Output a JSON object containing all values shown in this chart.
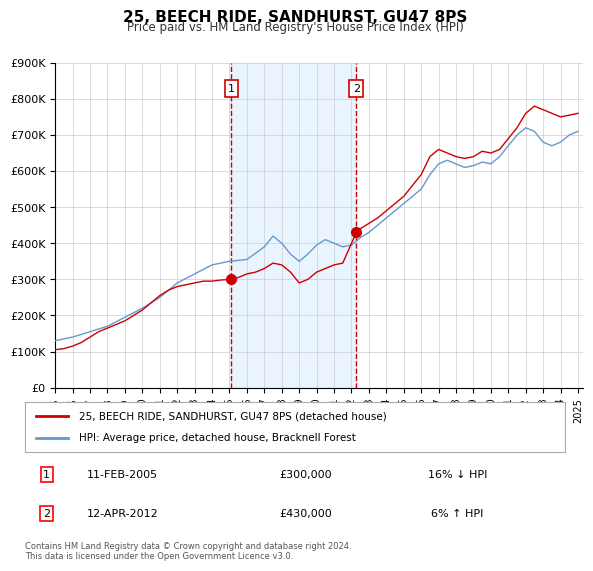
{
  "title": "25, BEECH RIDE, SANDHURST, GU47 8PS",
  "subtitle": "Price paid vs. HM Land Registry's House Price Index (HPI)",
  "xlabel": "",
  "ylabel": "",
  "ylim": [
    0,
    900000
  ],
  "xlim_start": 1995.0,
  "xlim_end": 2025.3,
  "yticks": [
    0,
    100000,
    200000,
    300000,
    400000,
    500000,
    600000,
    700000,
    800000,
    900000
  ],
  "ytick_labels": [
    "£0",
    "£100K",
    "£200K",
    "£300K",
    "£400K",
    "£500K",
    "£600K",
    "£700K",
    "£800K",
    "£900K"
  ],
  "xtick_years": [
    1995,
    1996,
    1997,
    1998,
    1999,
    2000,
    2001,
    2002,
    2003,
    2004,
    2005,
    2006,
    2007,
    2008,
    2009,
    2010,
    2011,
    2012,
    2013,
    2014,
    2015,
    2016,
    2017,
    2018,
    2019,
    2020,
    2021,
    2022,
    2023,
    2024,
    2025
  ],
  "line1_color": "#cc0000",
  "line2_color": "#6699cc",
  "marker_color": "#cc0000",
  "vline_color": "#cc0000",
  "vline_style": "dashed",
  "shade_color": "#ddeeff",
  "event1_x": 2005.11,
  "event1_y": 300000,
  "event2_x": 2012.28,
  "event2_y": 430000,
  "legend_label1": "25, BEECH RIDE, SANDHURST, GU47 8PS (detached house)",
  "legend_label2": "HPI: Average price, detached house, Bracknell Forest",
  "table_row1_num": "1",
  "table_row1_date": "11-FEB-2005",
  "table_row1_price": "£300,000",
  "table_row1_hpi": "16% ↓ HPI",
  "table_row2_num": "2",
  "table_row2_date": "12-APR-2012",
  "table_row2_price": "£430,000",
  "table_row2_hpi": "6% ↑ HPI",
  "footer": "Contains HM Land Registry data © Crown copyright and database right 2024.\nThis data is licensed under the Open Government Licence v3.0.",
  "background_color": "#ffffff",
  "grid_color": "#cccccc"
}
